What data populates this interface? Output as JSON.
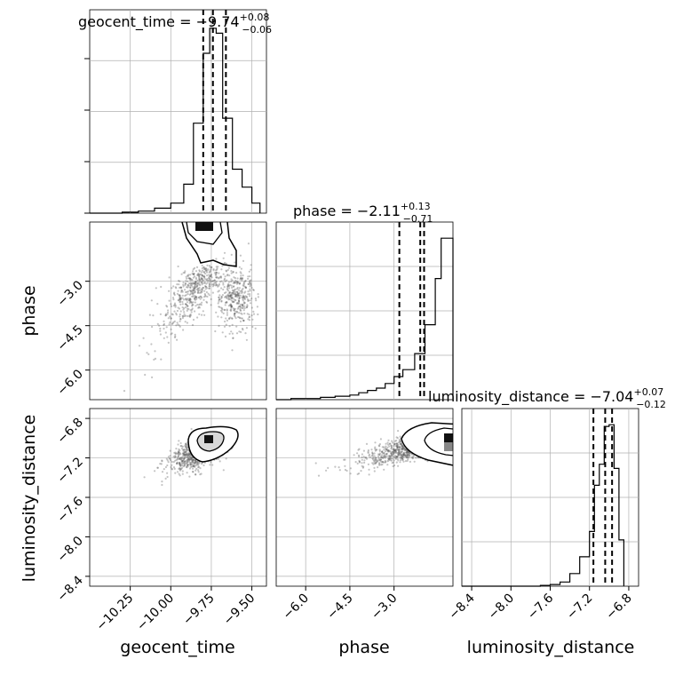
{
  "chart_data": {
    "type": "corner",
    "parameters": [
      "geocent_time",
      "phase",
      "luminosity_distance"
    ],
    "grid": true,
    "colors": {
      "ink": "#000000",
      "grid": "#b0b0b0",
      "scatter": "#555555",
      "background": "#ffffff"
    },
    "titles": {
      "geocent_time": {
        "prefix": "geocent_time = −9.74",
        "plus": "+0.08",
        "minus": "−0.06"
      },
      "phase": {
        "prefix": "phase = −2.11",
        "plus": "+0.13",
        "minus": "−0.71"
      },
      "luminosity_distance": {
        "prefix": "luminosity_distance = −7.04",
        "plus": "+0.07",
        "minus": "−0.12"
      }
    },
    "ranges": {
      "geocent_time": [
        -10.5,
        -9.41
      ],
      "phase": [
        -7.0,
        -1.0
      ],
      "luminosity_distance": [
        -8.5,
        -6.7
      ]
    },
    "ticks": {
      "geocent_time": {
        "values": [
          -10.25,
          -10.0,
          -9.75,
          -9.5
        ],
        "labels": [
          "−10.25",
          "−10.00",
          "−9.75",
          "−9.50"
        ]
      },
      "phase": {
        "values": [
          -6.0,
          -4.5,
          -3.0
        ],
        "labels": [
          "−6.0",
          "−4.5",
          "−3.0"
        ]
      },
      "luminosity_distance": {
        "values": [
          -8.4,
          -8.0,
          -7.6,
          -7.2,
          -6.8
        ],
        "labels": [
          "−8.4",
          "−8.0",
          "−7.6",
          "−7.2",
          "−6.8"
        ]
      }
    },
    "histograms": {
      "geocent_time": {
        "bin_edges": [
          -10.5,
          -10.4,
          -10.3,
          -10.2,
          -10.1,
          -10.0,
          -9.92,
          -9.86,
          -9.8,
          -9.76,
          -9.72,
          -9.68,
          -9.62,
          -9.56,
          -9.5,
          -9.45
        ],
        "counts": [
          0,
          0,
          1,
          2,
          5,
          10,
          29,
          90,
          160,
          185,
          180,
          95,
          44,
          26,
          10
        ]
      },
      "phase": {
        "bin_edges": [
          -7.0,
          -6.5,
          -6.0,
          -5.5,
          -5.0,
          -4.5,
          -4.2,
          -3.9,
          -3.6,
          -3.3,
          -3.0,
          -2.7,
          -2.3,
          -1.95,
          -1.6,
          -1.4,
          -1.0
        ],
        "counts": [
          0,
          1,
          1,
          2,
          3,
          4,
          6,
          8,
          10,
          14,
          20,
          26,
          40,
          65,
          105,
          140
        ]
      },
      "luminosity_distance": {
        "bin_edges": [
          -8.5,
          -7.7,
          -7.6,
          -7.5,
          -7.4,
          -7.3,
          -7.2,
          -7.15,
          -7.1,
          -7.05,
          -7.0,
          -6.95,
          -6.9,
          -6.85
        ],
        "counts": [
          0,
          1,
          2,
          5,
          15,
          35,
          65,
          120,
          145,
          190,
          192,
          140,
          55
        ]
      }
    },
    "quantile_lines": {
      "geocent_time": [
        -9.8,
        -9.74,
        -9.66
      ],
      "phase": [
        -2.82,
        -2.11,
        -1.98
      ],
      "luminosity_distance": [
        -7.16,
        -7.04,
        -6.97
      ]
    },
    "pairs": [
      {
        "x": "geocent_time",
        "y": "phase",
        "center": [
          -9.74,
          -2.4
        ]
      },
      {
        "x": "geocent_time",
        "y": "luminosity_distance",
        "center": [
          -9.74,
          -7.04
        ]
      },
      {
        "x": "phase",
        "y": "luminosity_distance",
        "center": [
          -1.7,
          -7.04
        ]
      }
    ]
  }
}
